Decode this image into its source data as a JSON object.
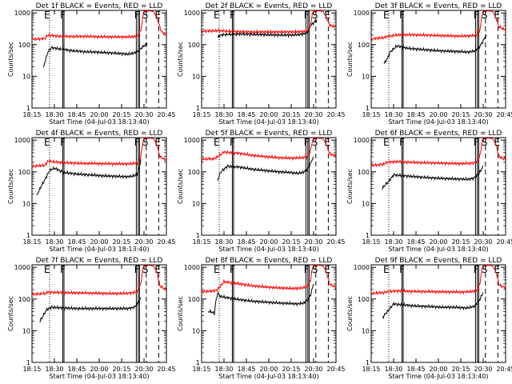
{
  "colors": {
    "events": "#000000",
    "lld": "#ff0000",
    "axis": "#000000",
    "background": "#ffffff"
  },
  "common": {
    "ylabel": "Counts/sec",
    "xlabel": "Start Time (04-Jul-03 18:13:40)",
    "x_ticks": [
      "18:15",
      "18:30",
      "18:45",
      "20:00",
      "20:15",
      "20:30",
      "20:45"
    ],
    "y_ticks": [
      "1",
      "10",
      "100",
      "1000"
    ],
    "markers": [
      "E",
      "F",
      "F",
      "S",
      "E"
    ]
  },
  "chart_data": [
    {
      "type": "line",
      "title": "Det 1f BLACK = Events, RED = LLD",
      "x_range_min": [
        0,
        42
      ],
      "ylim": [
        1,
        1200
      ],
      "series": [
        {
          "name": "Events",
          "color": "black",
          "x": [
            3.5,
            5,
            6,
            8,
            12,
            16,
            20,
            24,
            28,
            30,
            31,
            32,
            33,
            33.5,
            34,
            36
          ],
          "values": [
            18,
            60,
            80,
            75,
            65,
            60,
            58,
            55,
            52,
            50,
            52,
            55,
            60,
            65,
            75,
            110
          ]
        },
        {
          "name": "LLD",
          "color": "red",
          "x": [
            0,
            2,
            4,
            5,
            8,
            12,
            16,
            20,
            24,
            28,
            31,
            33,
            34,
            34.6,
            35,
            35.5,
            36,
            37,
            38,
            39,
            40,
            40.4,
            41,
            42
          ],
          "values": [
            150,
            150,
            155,
            200,
            185,
            180,
            182,
            178,
            176,
            175,
            176,
            185,
            280,
            700,
            1100,
            1150,
            1150,
            1150,
            1100,
            700,
            350,
            260,
            230,
            220
          ]
        }
      ],
      "markers_x": [
        5.5,
        10,
        21,
        23,
        24.5
      ]
    },
    {
      "type": "line",
      "title": "Det 2f BLACK = Events, RED = LLD",
      "x_range_min": [
        0,
        42
      ],
      "ylim": [
        1,
        1200
      ],
      "series": [
        {
          "name": "Events",
          "color": "black",
          "x": [
            5,
            6,
            8,
            12,
            16,
            20,
            24,
            28,
            30,
            31,
            32,
            33,
            33.5,
            34,
            36
          ],
          "values": [
            170,
            200,
            210,
            215,
            210,
            205,
            200,
            200,
            205,
            210,
            220,
            240,
            280,
            400,
            600
          ]
        },
        {
          "name": "LLD",
          "color": "red",
          "x": [
            0,
            2,
            4,
            5,
            8,
            12,
            16,
            20,
            24,
            28,
            31,
            33,
            34,
            34.6,
            35,
            36,
            37,
            38,
            39,
            40,
            41,
            42
          ],
          "values": [
            260,
            270,
            270,
            280,
            265,
            255,
            250,
            252,
            250,
            252,
            255,
            270,
            400,
            900,
            1150,
            1150,
            1150,
            1100,
            700,
            420,
            380,
            360
          ]
        }
      ],
      "markers_x": [
        5.5,
        10,
        21,
        23,
        24.5
      ]
    },
    {
      "type": "line",
      "title": "Det 3f BLACK = Events, RED = LLD",
      "x_range_min": [
        0,
        42
      ],
      "ylim": [
        1,
        1200
      ],
      "series": [
        {
          "name": "Events",
          "color": "black",
          "x": [
            4,
            5,
            6,
            8,
            12,
            16,
            20,
            24,
            28,
            30,
            31,
            32,
            33,
            34,
            35,
            36
          ],
          "values": [
            25,
            35,
            60,
            90,
            75,
            70,
            65,
            62,
            60,
            58,
            60,
            62,
            70,
            90,
            130,
            200
          ]
        },
        {
          "name": "LLD",
          "color": "red",
          "x": [
            0,
            2,
            4,
            5,
            8,
            12,
            16,
            20,
            24,
            28,
            31,
            33,
            34,
            34.6,
            35,
            36,
            37,
            38,
            39,
            40,
            41,
            42
          ],
          "values": [
            150,
            160,
            165,
            180,
            200,
            205,
            200,
            195,
            190,
            185,
            190,
            200,
            300,
            800,
            1150,
            1150,
            1150,
            1100,
            700,
            360,
            320,
            300
          ]
        }
      ],
      "markers_x": [
        5.5,
        10,
        21,
        23,
        24.5
      ]
    },
    {
      "type": "line",
      "title": "Det 4f BLACK = Events, RED = LLD",
      "x_range_min": [
        0,
        42
      ],
      "ylim": [
        1,
        1200
      ],
      "series": [
        {
          "name": "Events",
          "color": "black",
          "x": [
            1.5,
            2.5,
            3.5,
            4.5,
            5.5,
            7,
            10,
            14,
            18,
            22,
            26,
            30,
            32,
            33,
            33.5,
            34
          ],
          "values": [
            18,
            30,
            45,
            70,
            110,
            130,
            95,
            85,
            80,
            75,
            72,
            70,
            75,
            90,
            130,
            250
          ]
        },
        {
          "name": "LLD",
          "color": "red",
          "x": [
            0,
            2,
            4,
            5,
            8,
            12,
            16,
            20,
            24,
            28,
            31,
            33,
            34,
            34.6,
            35,
            36,
            37,
            38,
            39,
            40,
            41,
            42
          ],
          "values": [
            150,
            155,
            160,
            220,
            200,
            190,
            185,
            183,
            180,
            178,
            180,
            190,
            300,
            800,
            1150,
            1150,
            1150,
            1100,
            700,
            300,
            260,
            240
          ]
        }
      ],
      "markers_x": [
        5.5,
        10,
        21,
        23,
        24.5
      ]
    },
    {
      "type": "line",
      "title": "Det 5f BLACK = Events, RED = LLD",
      "x_range_min": [
        0,
        42
      ],
      "ylim": [
        1,
        1200
      ],
      "series": [
        {
          "name": "Events",
          "color": "black",
          "x": [
            5,
            6,
            7,
            8,
            12,
            16,
            20,
            24,
            28,
            30,
            31,
            32,
            33,
            34,
            35
          ],
          "values": [
            55,
            100,
            120,
            150,
            140,
            120,
            110,
            100,
            95,
            90,
            92,
            100,
            120,
            180,
            300
          ]
        },
        {
          "name": "LLD",
          "color": "red",
          "x": [
            0,
            2,
            4,
            5,
            7,
            12,
            16,
            20,
            24,
            28,
            31,
            33,
            34,
            34.6,
            35,
            36,
            37,
            38,
            39,
            40,
            41,
            42
          ],
          "values": [
            250,
            255,
            260,
            300,
            420,
            380,
            330,
            300,
            280,
            270,
            275,
            300,
            450,
            900,
            1150,
            1150,
            1150,
            1100,
            700,
            380,
            340,
            320
          ]
        }
      ],
      "markers_x": [
        5.5,
        10,
        21,
        23,
        24.5
      ]
    },
    {
      "type": "line",
      "title": "Det 6f BLACK = Events, RED = LLD",
      "x_range_min": [
        0,
        42
      ],
      "ylim": [
        1,
        1200
      ],
      "series": [
        {
          "name": "Events",
          "color": "black",
          "x": [
            3.5,
            4.5,
            5.5,
            7,
            10,
            14,
            18,
            22,
            26,
            30,
            32,
            33,
            34,
            35
          ],
          "values": [
            30,
            40,
            50,
            80,
            75,
            70,
            65,
            62,
            60,
            58,
            62,
            75,
            100,
            150
          ]
        },
        {
          "name": "LLD",
          "color": "red",
          "x": [
            0,
            2,
            4,
            5,
            8,
            12,
            16,
            20,
            24,
            28,
            31,
            33,
            34,
            34.6,
            35,
            36,
            37,
            38,
            39,
            40,
            41,
            42
          ],
          "values": [
            160,
            165,
            175,
            200,
            210,
            200,
            195,
            190,
            185,
            182,
            185,
            200,
            320,
            850,
            1150,
            1150,
            1150,
            1100,
            700,
            300,
            270,
            250
          ]
        }
      ],
      "markers_x": [
        5.5,
        10,
        21,
        23,
        24.5
      ]
    },
    {
      "type": "line",
      "title": "Det 7f BLACK = Events, RED = LLD",
      "x_range_min": [
        0,
        42
      ],
      "ylim": [
        1,
        1200
      ],
      "series": [
        {
          "name": "Events",
          "color": "black",
          "x": [
            2.5,
            3.5,
            4.5,
            6,
            10,
            14,
            18,
            22,
            26,
            30,
            32,
            33,
            34
          ],
          "values": [
            20,
            30,
            45,
            55,
            52,
            50,
            50,
            50,
            50,
            50,
            55,
            70,
            110
          ]
        },
        {
          "name": "LLD",
          "color": "red",
          "x": [
            0,
            2,
            4,
            5,
            8,
            12,
            16,
            20,
            24,
            28,
            31,
            33,
            34,
            34.6,
            35,
            36,
            37,
            38,
            39,
            40,
            41,
            42
          ],
          "values": [
            140,
            145,
            150,
            165,
            160,
            158,
            155,
            152,
            150,
            150,
            155,
            170,
            300,
            800,
            1150,
            1150,
            1150,
            1100,
            700,
            260,
            220,
            200
          ]
        }
      ],
      "markers_x": [
        5.5,
        10,
        21,
        23,
        24.5
      ]
    },
    {
      "type": "line",
      "title": "Det 8f BLACK = Events, RED = LLD",
      "x_range_min": [
        0,
        42
      ],
      "ylim": [
        1,
        1200
      ],
      "series": [
        {
          "name": "Events",
          "color": "black",
          "x": [
            2,
            3,
            4,
            4.5,
            5,
            6,
            8,
            12,
            16,
            20,
            24,
            28,
            30,
            32,
            33,
            34,
            35
          ],
          "values": [
            40,
            40,
            35,
            90,
            150,
            120,
            110,
            95,
            85,
            80,
            75,
            72,
            70,
            75,
            90,
            130,
            300
          ]
        },
        {
          "name": "LLD",
          "color": "red",
          "x": [
            0,
            2,
            4,
            5,
            7,
            12,
            16,
            20,
            24,
            28,
            31,
            33,
            34,
            34.6,
            35,
            36,
            37,
            38,
            39,
            40,
            41,
            42
          ],
          "values": [
            170,
            175,
            180,
            200,
            350,
            300,
            260,
            240,
            225,
            215,
            220,
            240,
            380,
            900,
            1150,
            1150,
            1150,
            1100,
            700,
            300,
            260,
            240
          ]
        }
      ],
      "markers_x": [
        5.5,
        10,
        21,
        23,
        24.5
      ]
    },
    {
      "type": "line",
      "title": "Det 9f BLACK = Events, RED = LLD",
      "x_range_min": [
        0,
        42
      ],
      "ylim": [
        1,
        1200
      ],
      "series": [
        {
          "name": "Events",
          "color": "black",
          "x": [
            3.5,
            4.5,
            5.5,
            7,
            10,
            14,
            18,
            22,
            26,
            30,
            32,
            33,
            34,
            35
          ],
          "values": [
            25,
            35,
            45,
            70,
            65,
            60,
            58,
            55,
            55,
            52,
            58,
            70,
            100,
            160
          ]
        },
        {
          "name": "LLD",
          "color": "red",
          "x": [
            0,
            2,
            4,
            5,
            8,
            12,
            16,
            20,
            24,
            28,
            31,
            33,
            34,
            34.6,
            35,
            36,
            37,
            38,
            39,
            40,
            41,
            42
          ],
          "values": [
            150,
            155,
            160,
            170,
            180,
            175,
            172,
            170,
            168,
            165,
            170,
            185,
            320,
            850,
            1150,
            1150,
            1150,
            1100,
            700,
            280,
            250,
            230
          ]
        }
      ],
      "markers_x": [
        5.5,
        10,
        21,
        23,
        24.5
      ]
    }
  ]
}
